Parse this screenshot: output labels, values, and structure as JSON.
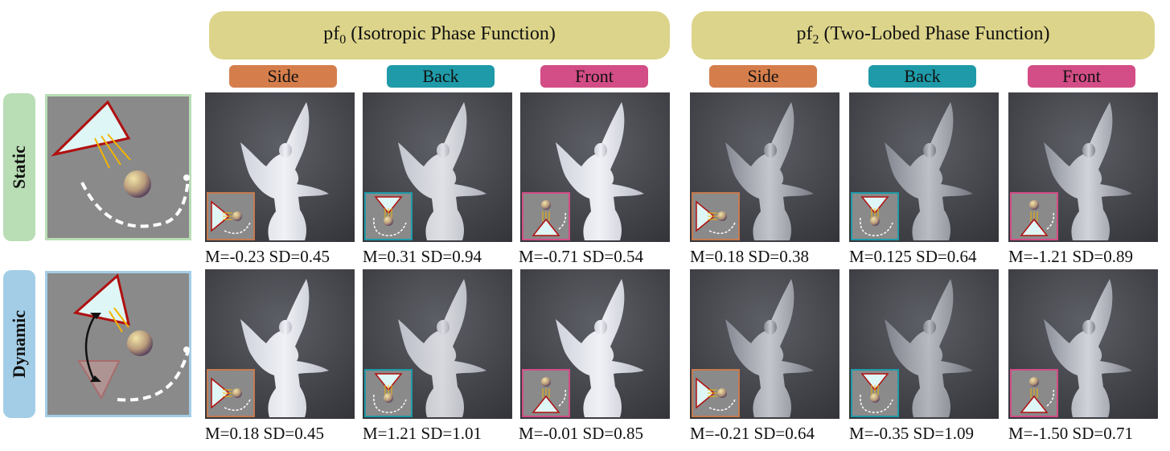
{
  "groups": [
    {
      "prefix": "pf",
      "sub": "0",
      "suffix": " (Isotropic Phase Function)"
    },
    {
      "prefix": "pf",
      "sub": "2",
      "suffix": " (Two-Lobed Phase Function)"
    }
  ],
  "column_labels": [
    "Side",
    "Back",
    "Front"
  ],
  "column_colors": {
    "Side": "#d57e4c",
    "Back": "#1f9aa8",
    "Front": "#d34d86"
  },
  "rows": [
    {
      "label": "Static",
      "color": "#b9ddb5"
    },
    {
      "label": "Dynamic",
      "color": "#a3cde6"
    }
  ],
  "stats": [
    [
      "M=-0.23 SD=0.45",
      "M=0.31 SD=0.94",
      "M=-0.71 SD=0.54",
      "M=0.18 SD=0.38",
      "M=0.125 SD=0.64",
      "M=-1.21 SD=0.89"
    ],
    [
      "M=0.18 SD=0.45",
      "M=1.21 SD=1.01",
      "M=-0.01 SD=0.85",
      "M=-0.21 SD=0.64",
      "M=-0.35 SD=1.09",
      "M=-1.50 SD=0.71"
    ]
  ]
}
